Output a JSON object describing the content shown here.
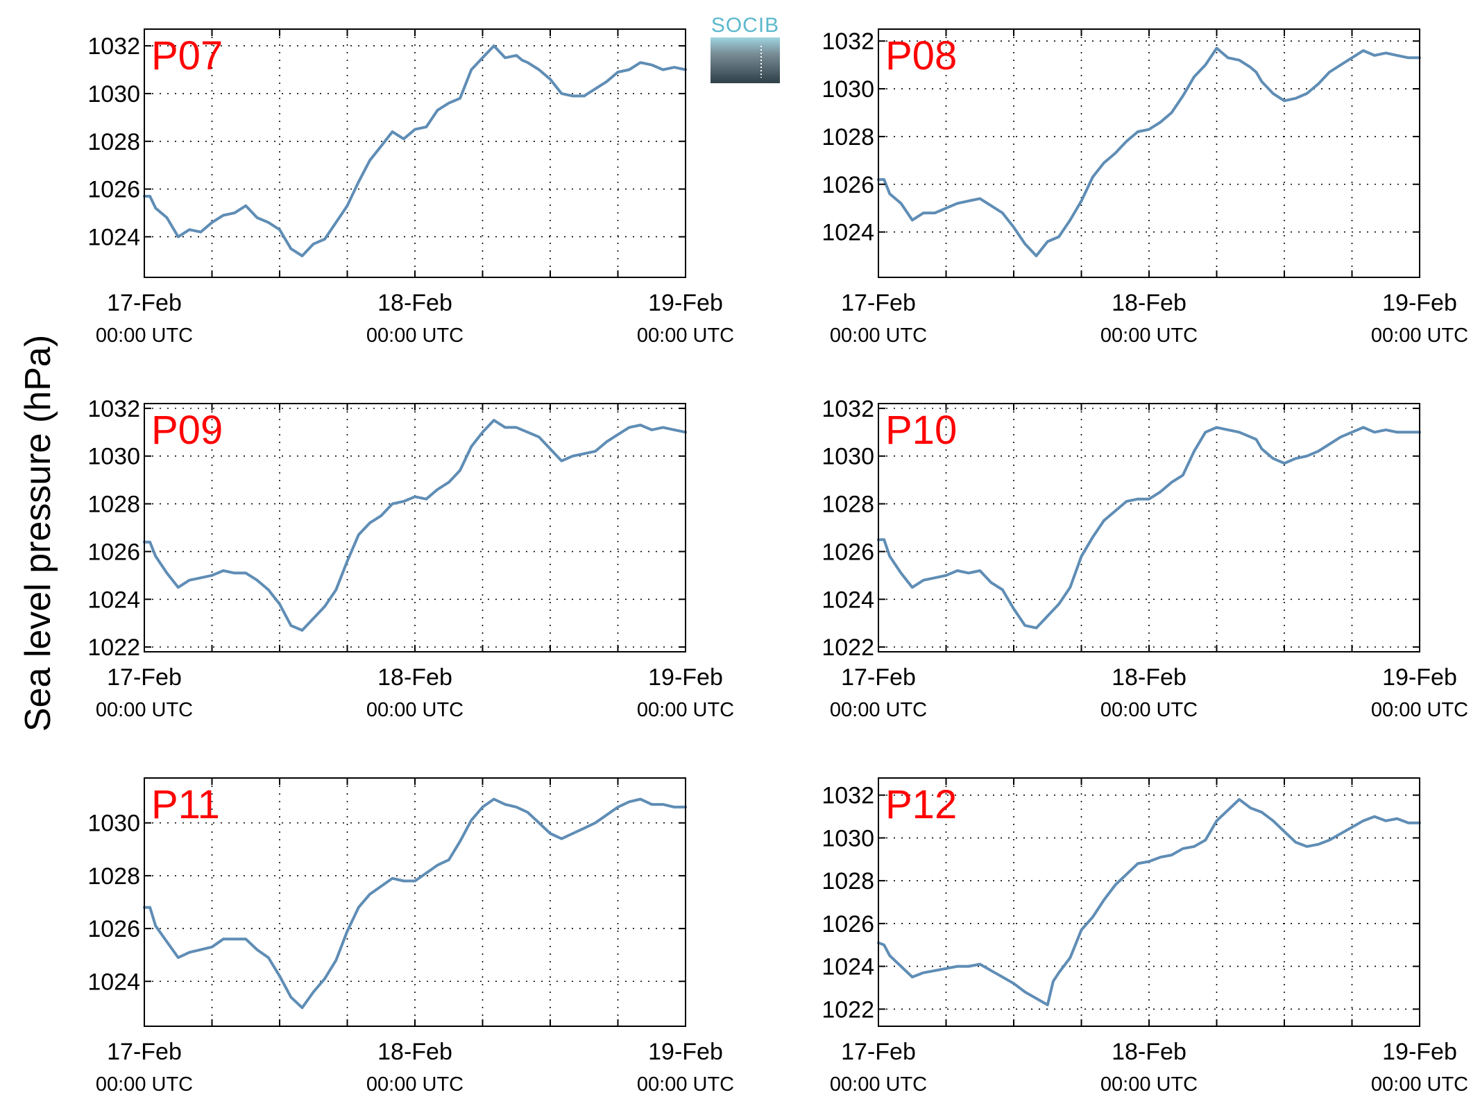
{
  "figure": {
    "ylabel": "Sea level pressure (hPa)",
    "logo": "SOCIB",
    "colors": {
      "series": "#5f8db5",
      "panel_title": "#ff0000",
      "logo": "#5bb8cc"
    }
  },
  "chart_data": [
    {
      "type": "line",
      "title": "P07",
      "x_unit": "hours since 17-Feb 00:00 UTC",
      "xlim": [
        0,
        48
      ],
      "xticks": [
        {
          "label": "17-Feb",
          "sub": "00:00 UTC"
        },
        {
          "label": "18-Feb",
          "sub": "00:00 UTC"
        },
        {
          "label": "19-Feb",
          "sub": "00:00 UTC"
        }
      ],
      "ylim": [
        1022.3,
        1032.7
      ],
      "yticks": [
        1024,
        1026,
        1028,
        1030,
        1032
      ],
      "grid": true,
      "series": [
        {
          "x": [
            0,
            0.5,
            1,
            2,
            3,
            4,
            5,
            6,
            7,
            8,
            9,
            10,
            11,
            12,
            13,
            14,
            15,
            16,
            17,
            18,
            19,
            20,
            21,
            22,
            23,
            24,
            25,
            26,
            27,
            28,
            29,
            30,
            31,
            32,
            33,
            33.5,
            34,
            35,
            36,
            37,
            38,
            39,
            40,
            41,
            42,
            43,
            44,
            45,
            46,
            47,
            48
          ],
          "y": [
            1025.7,
            1025.7,
            1025.2,
            1024.8,
            1024.0,
            1024.3,
            1024.2,
            1024.6,
            1024.9,
            1025.0,
            1025.3,
            1024.8,
            1024.6,
            1024.3,
            1023.5,
            1023.2,
            1023.7,
            1023.9,
            1024.6,
            1025.3,
            1026.3,
            1027.2,
            1027.8,
            1028.4,
            1028.1,
            1028.5,
            1028.6,
            1029.3,
            1029.6,
            1029.8,
            1031.0,
            1031.5,
            1032.0,
            1031.5,
            1031.6,
            1031.4,
            1031.3,
            1031.0,
            1030.6,
            1030.0,
            1029.9,
            1029.9,
            1030.2,
            1030.5,
            1030.9,
            1031.0,
            1031.3,
            1031.2,
            1031.0,
            1031.1,
            1031.0
          ]
        }
      ]
    },
    {
      "type": "line",
      "title": "P08",
      "x_unit": "hours since 17-Feb 00:00 UTC",
      "xlim": [
        0,
        48
      ],
      "xticks": [
        {
          "label": "17-Feb",
          "sub": "00:00 UTC"
        },
        {
          "label": "18-Feb",
          "sub": "00:00 UTC"
        },
        {
          "label": "19-Feb",
          "sub": "00:00 UTC"
        }
      ],
      "ylim": [
        1022.1,
        1032.5
      ],
      "yticks": [
        1024,
        1026,
        1028,
        1030,
        1032
      ],
      "grid": true,
      "series": [
        {
          "x": [
            0,
            0.5,
            1,
            2,
            3,
            4,
            5,
            6,
            7,
            8,
            9,
            10,
            11,
            12,
            13,
            14,
            15,
            16,
            17,
            18,
            19,
            20,
            21,
            22,
            23,
            24,
            25,
            26,
            27,
            28,
            29,
            30,
            31,
            32,
            33,
            33.5,
            34,
            35,
            36,
            37,
            38,
            39,
            40,
            41,
            42,
            43,
            44,
            45,
            46,
            47,
            48
          ],
          "y": [
            1026.2,
            1026.2,
            1025.6,
            1025.2,
            1024.5,
            1024.8,
            1024.8,
            1025.0,
            1025.2,
            1025.3,
            1025.4,
            1025.1,
            1024.8,
            1024.2,
            1023.5,
            1023.0,
            1023.6,
            1023.8,
            1024.5,
            1025.3,
            1026.3,
            1026.9,
            1027.3,
            1027.8,
            1028.2,
            1028.3,
            1028.6,
            1029.0,
            1029.7,
            1030.5,
            1031.0,
            1031.7,
            1031.3,
            1031.2,
            1030.9,
            1030.7,
            1030.3,
            1029.8,
            1029.5,
            1029.6,
            1029.8,
            1030.2,
            1030.7,
            1031.0,
            1031.3,
            1031.6,
            1031.4,
            1031.5,
            1031.4,
            1031.3,
            1031.3
          ]
        }
      ]
    },
    {
      "type": "line",
      "title": "P09",
      "x_unit": "hours since 17-Feb 00:00 UTC",
      "xlim": [
        0,
        48
      ],
      "xticks": [
        {
          "label": "17-Feb",
          "sub": "00:00 UTC"
        },
        {
          "label": "18-Feb",
          "sub": "00:00 UTC"
        },
        {
          "label": "19-Feb",
          "sub": "00:00 UTC"
        }
      ],
      "ylim": [
        1021.8,
        1032.2
      ],
      "yticks": [
        1022,
        1024,
        1026,
        1028,
        1030,
        1032
      ],
      "grid": true,
      "series": [
        {
          "x": [
            0,
            0.5,
            1,
            2,
            3,
            4,
            5,
            6,
            7,
            8,
            9,
            10,
            11,
            12,
            13,
            14,
            15,
            16,
            17,
            18,
            19,
            20,
            21,
            22,
            23,
            24,
            25,
            26,
            27,
            28,
            29,
            30,
            31,
            32,
            33,
            33.5,
            34,
            35,
            36,
            37,
            38,
            39,
            40,
            41,
            42,
            43,
            44,
            45,
            46,
            47,
            48
          ],
          "y": [
            1026.4,
            1026.4,
            1025.8,
            1025.1,
            1024.5,
            1024.8,
            1024.9,
            1025.0,
            1025.2,
            1025.1,
            1025.1,
            1024.8,
            1024.4,
            1023.8,
            1022.9,
            1022.7,
            1023.2,
            1023.7,
            1024.4,
            1025.6,
            1026.7,
            1027.2,
            1027.5,
            1028.0,
            1028.1,
            1028.3,
            1028.2,
            1028.6,
            1028.9,
            1029.4,
            1030.4,
            1031.0,
            1031.5,
            1031.2,
            1031.2,
            1031.1,
            1031.0,
            1030.8,
            1030.3,
            1029.8,
            1030.0,
            1030.1,
            1030.2,
            1030.6,
            1030.9,
            1031.2,
            1031.3,
            1031.1,
            1031.2,
            1031.1,
            1031.0
          ]
        }
      ]
    },
    {
      "type": "line",
      "title": "P10",
      "x_unit": "hours since 17-Feb 00:00 UTC",
      "xlim": [
        0,
        48
      ],
      "xticks": [
        {
          "label": "17-Feb",
          "sub": "00:00 UTC"
        },
        {
          "label": "18-Feb",
          "sub": "00:00 UTC"
        },
        {
          "label": "19-Feb",
          "sub": "00:00 UTC"
        }
      ],
      "ylim": [
        1021.8,
        1032.2
      ],
      "yticks": [
        1022,
        1024,
        1026,
        1028,
        1030,
        1032
      ],
      "grid": true,
      "series": [
        {
          "x": [
            0,
            0.5,
            1,
            2,
            3,
            4,
            5,
            6,
            7,
            8,
            9,
            10,
            11,
            12,
            13,
            14,
            15,
            16,
            17,
            18,
            19,
            20,
            21,
            22,
            23,
            24,
            25,
            26,
            27,
            28,
            29,
            30,
            31,
            32,
            33,
            33.5,
            34,
            35,
            36,
            37,
            38,
            39,
            40,
            41,
            42,
            43,
            44,
            45,
            46,
            47,
            48
          ],
          "y": [
            1026.5,
            1026.5,
            1025.8,
            1025.1,
            1024.5,
            1024.8,
            1024.9,
            1025.0,
            1025.2,
            1025.1,
            1025.2,
            1024.7,
            1024.4,
            1023.6,
            1022.9,
            1022.8,
            1023.3,
            1023.8,
            1024.5,
            1025.8,
            1026.6,
            1027.3,
            1027.7,
            1028.1,
            1028.2,
            1028.2,
            1028.5,
            1028.9,
            1029.2,
            1030.2,
            1031.0,
            1031.2,
            1031.1,
            1031.0,
            1030.8,
            1030.7,
            1030.3,
            1029.9,
            1029.7,
            1029.9,
            1030.0,
            1030.2,
            1030.5,
            1030.8,
            1031.0,
            1031.2,
            1031.0,
            1031.1,
            1031.0,
            1031.0,
            1031.0
          ]
        }
      ]
    },
    {
      "type": "line",
      "title": "P11",
      "x_unit": "hours since 17-Feb 00:00 UTC",
      "xlim": [
        0,
        48
      ],
      "xticks": [
        {
          "label": "17-Feb",
          "sub": "00:00 UTC"
        },
        {
          "label": "18-Feb",
          "sub": "00:00 UTC"
        },
        {
          "label": "19-Feb",
          "sub": "00:00 UTC"
        }
      ],
      "ylim": [
        1022.3,
        1031.7
      ],
      "yticks": [
        1024,
        1026,
        1028,
        1030
      ],
      "grid": true,
      "series": [
        {
          "x": [
            0,
            0.5,
            1,
            2,
            3,
            4,
            5,
            6,
            7,
            8,
            9,
            10,
            11,
            12,
            13,
            14,
            15,
            16,
            17,
            18,
            19,
            20,
            21,
            22,
            23,
            24,
            25,
            26,
            27,
            28,
            29,
            30,
            31,
            32,
            33,
            33.5,
            34,
            35,
            36,
            37,
            38,
            39,
            40,
            41,
            42,
            43,
            44,
            45,
            46,
            47,
            48
          ],
          "y": [
            1026.8,
            1026.8,
            1026.1,
            1025.5,
            1024.9,
            1025.1,
            1025.2,
            1025.3,
            1025.6,
            1025.6,
            1025.6,
            1025.2,
            1024.9,
            1024.2,
            1023.4,
            1023.0,
            1023.6,
            1024.1,
            1024.8,
            1025.9,
            1026.8,
            1027.3,
            1027.6,
            1027.9,
            1027.8,
            1027.8,
            1028.1,
            1028.4,
            1028.6,
            1029.3,
            1030.1,
            1030.6,
            1030.9,
            1030.7,
            1030.6,
            1030.5,
            1030.4,
            1030.0,
            1029.6,
            1029.4,
            1029.6,
            1029.8,
            1030.0,
            1030.3,
            1030.6,
            1030.8,
            1030.9,
            1030.7,
            1030.7,
            1030.6,
            1030.6
          ]
        }
      ]
    },
    {
      "type": "line",
      "title": "P12",
      "x_unit": "hours since 17-Feb 00:00 UTC",
      "xlim": [
        0,
        48
      ],
      "xticks": [
        {
          "label": "17-Feb",
          "sub": "00:00 UTC"
        },
        {
          "label": "18-Feb",
          "sub": "00:00 UTC"
        },
        {
          "label": "19-Feb",
          "sub": "00:00 UTC"
        }
      ],
      "ylim": [
        1021.2,
        1032.8
      ],
      "yticks": [
        1022,
        1024,
        1026,
        1028,
        1030,
        1032
      ],
      "grid": true,
      "series": [
        {
          "x": [
            0,
            0.5,
            1,
            2,
            3,
            4,
            5,
            6,
            7,
            8,
            9,
            10,
            11,
            12,
            13,
            14,
            15,
            15.5,
            16,
            17,
            18,
            19,
            20,
            21,
            22,
            23,
            24,
            25,
            26,
            27,
            28,
            29,
            30,
            31,
            32,
            33,
            34,
            35,
            36,
            37,
            38,
            39,
            40,
            41,
            42,
            43,
            44,
            45,
            46,
            47,
            48
          ],
          "y": [
            1025.1,
            1025.0,
            1024.5,
            1024.0,
            1023.5,
            1023.7,
            1023.8,
            1023.9,
            1024.0,
            1024.0,
            1024.1,
            1023.8,
            1023.5,
            1023.2,
            1022.8,
            1022.5,
            1022.2,
            1023.3,
            1023.7,
            1024.4,
            1025.7,
            1026.3,
            1027.1,
            1027.8,
            1028.3,
            1028.8,
            1028.9,
            1029.1,
            1029.2,
            1029.5,
            1029.6,
            1029.9,
            1030.8,
            1031.3,
            1031.8,
            1031.4,
            1031.2,
            1030.8,
            1030.3,
            1029.8,
            1029.6,
            1029.7,
            1029.9,
            1030.2,
            1030.5,
            1030.8,
            1031.0,
            1030.8,
            1030.9,
            1030.7,
            1030.7
          ]
        }
      ]
    }
  ]
}
